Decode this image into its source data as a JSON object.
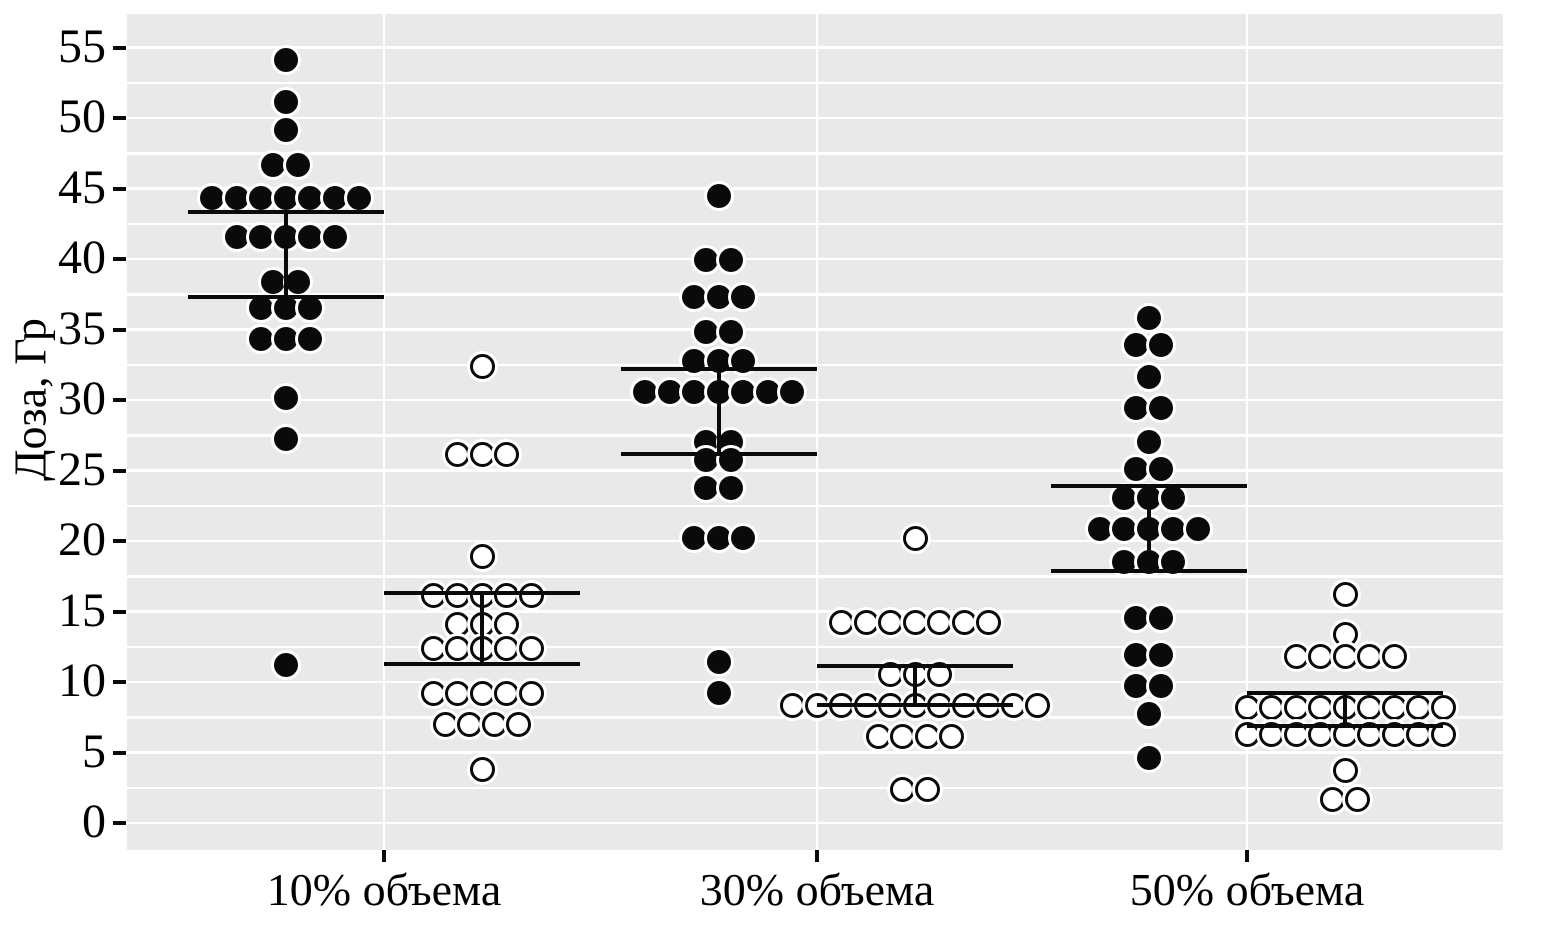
{
  "figure_title": "",
  "chart_data": {
    "type": "scatter",
    "subtype": "stacked-dot-plot with error bars (two marker groups per category)",
    "title": "",
    "xlabel": "",
    "ylabel": "Доза, Гр",
    "ylim": [
      0,
      57.5
    ],
    "yticks": [
      0,
      5,
      10,
      15,
      20,
      25,
      30,
      35,
      40,
      45,
      50,
      55
    ],
    "grid": "horizontal white gridlines every 2.5 Gy on grey panel; one vertical white gridline per category",
    "legend": "none",
    "categories": [
      "10% объема",
      "30% объема",
      "50% объема"
    ],
    "series": [
      {
        "name": "filled-circles",
        "marker": "filled-circle",
        "color": "#0a0a0a",
        "side": "left-of-category-tick",
        "clusters": [
          {
            "category": "10% объема",
            "rows": [
              [
                54.1,
                1
              ],
              [
                51.1,
                1
              ],
              [
                49.1,
                1
              ],
              [
                46.6,
                2
              ],
              [
                44.3,
                7
              ],
              [
                41.5,
                5
              ],
              [
                38.3,
                2
              ],
              [
                36.5,
                3
              ],
              [
                34.3,
                3
              ],
              [
                30.1,
                1
              ],
              [
                27.2,
                1
              ],
              [
                11.2,
                1
              ]
            ],
            "errorbar": {
              "upper": 43.3,
              "lower": 37.3
            }
          },
          {
            "category": "30% объема",
            "rows": [
              [
                44.4,
                1
              ],
              [
                39.9,
                2
              ],
              [
                37.3,
                3
              ],
              [
                34.8,
                2
              ],
              [
                32.7,
                3
              ],
              [
                30.5,
                7
              ],
              [
                27.0,
                2
              ],
              [
                25.7,
                2
              ],
              [
                23.7,
                2
              ],
              [
                20.2,
                3
              ],
              [
                11.4,
                1
              ],
              [
                9.2,
                1
              ]
            ],
            "errorbar": {
              "upper": 32.2,
              "lower": 26.2
            }
          },
          {
            "category": "50% объема",
            "rows": [
              [
                35.8,
                1
              ],
              [
                33.9,
                2
              ],
              [
                31.6,
                1
              ],
              [
                29.4,
                2
              ],
              [
                27.0,
                1
              ],
              [
                25.1,
                2
              ],
              [
                23.0,
                3
              ],
              [
                20.8,
                5
              ],
              [
                18.5,
                3
              ],
              [
                14.5,
                2
              ],
              [
                11.9,
                2
              ],
              [
                9.7,
                2
              ],
              [
                7.7,
                1
              ],
              [
                4.6,
                1
              ]
            ],
            "errorbar": {
              "upper": 23.9,
              "lower": 17.9
            }
          }
        ]
      },
      {
        "name": "open-circles",
        "marker": "open-circle",
        "color": "#ffffff",
        "stroke": "#0a0a0a",
        "side": "right-of-category-tick",
        "clusters": [
          {
            "category": "10% объема",
            "rows": [
              [
                32.4,
                1
              ],
              [
                26.1,
                3
              ],
              [
                18.9,
                1
              ],
              [
                16.1,
                5
              ],
              [
                14.1,
                3
              ],
              [
                12.4,
                5
              ],
              [
                9.2,
                5
              ],
              [
                7.0,
                4
              ],
              [
                3.8,
                1
              ]
            ],
            "errorbar": {
              "upper": 16.3,
              "lower": 11.3
            }
          },
          {
            "category": "30% объема",
            "rows": [
              [
                20.2,
                1
              ],
              [
                14.2,
                7
              ],
              [
                10.5,
                3
              ],
              [
                8.3,
                11
              ],
              [
                6.1,
                4
              ],
              [
                2.4,
                2
              ]
            ],
            "errorbar": {
              "upper": 11.1,
              "lower": 8.4
            }
          },
          {
            "category": "50% объема",
            "rows": [
              [
                16.2,
                1
              ],
              [
                13.4,
                1
              ],
              [
                11.8,
                5
              ],
              [
                8.2,
                9
              ],
              [
                6.3,
                9
              ],
              [
                3.7,
                1
              ],
              [
                1.7,
                2
              ]
            ],
            "errorbar": {
              "upper": 9.2,
              "lower": 6.9
            }
          }
        ]
      }
    ],
    "colors": {
      "panel_bg": "#e9e9e9",
      "gridline": "#ffffff",
      "marker_fill": "#0a0a0a",
      "marker_halo": "#ffffff",
      "text": "#000000"
    }
  }
}
